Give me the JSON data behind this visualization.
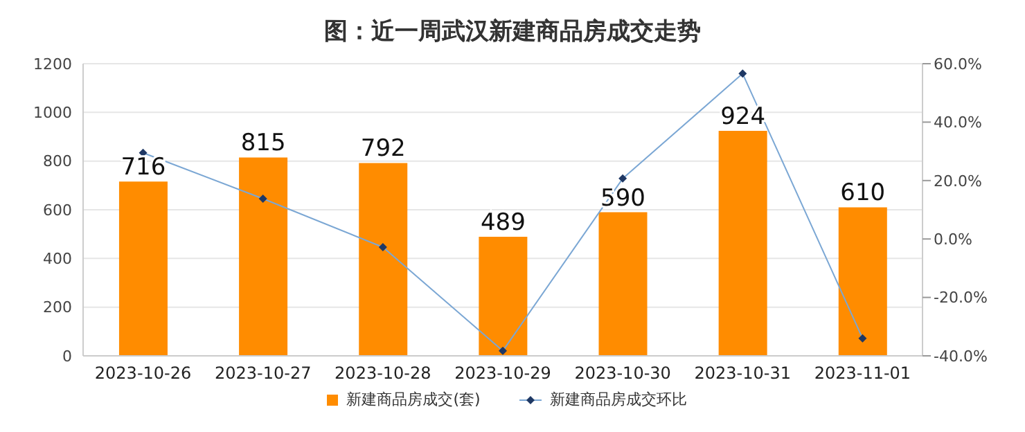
{
  "chart_data": {
    "type": "bar",
    "title": "图：近一周武汉新建商品房成交走势",
    "categories": [
      "2023-10-26",
      "2023-10-27",
      "2023-10-28",
      "2023-10-29",
      "2023-10-30",
      "2023-10-31",
      "2023-11-01"
    ],
    "series": [
      {
        "name": "新建商品房成交(套)",
        "color": "#ff8c00",
        "values": [
          716,
          815,
          792,
          489,
          590,
          924,
          610
        ],
        "data_labels": true
      },
      {
        "name": "新建商品房成交环比",
        "type": "line",
        "axis": "y2",
        "color": "#7ba7d4",
        "marker": "diamond",
        "values": [
          29.5,
          13.8,
          -2.8,
          -38.3,
          20.7,
          56.6,
          -34.0
        ]
      }
    ],
    "ylim": [
      0,
      1200
    ],
    "yticks": [
      0,
      200,
      400,
      600,
      800,
      1000,
      1200
    ],
    "y2lim": [
      -40,
      60
    ],
    "y2ticks": [
      {
        "value": -40,
        "label": "-40.0%"
      },
      {
        "value": -20,
        "label": "-20.0%"
      },
      {
        "value": 0,
        "label": "0.0%"
      },
      {
        "value": 20,
        "label": "20.0%"
      },
      {
        "value": 40,
        "label": "40.0%"
      },
      {
        "value": 60,
        "label": "60.0%"
      }
    ],
    "grid": "y",
    "legend": "bottom"
  }
}
